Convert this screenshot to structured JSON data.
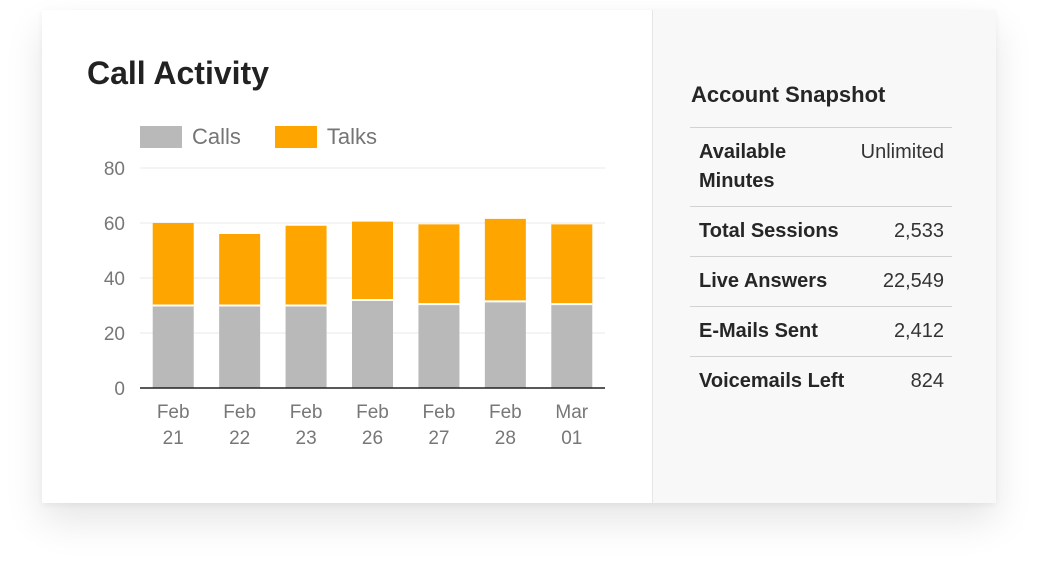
{
  "chart_data": {
    "type": "bar",
    "stacked": true,
    "title": "Call Activity",
    "categories": [
      "Feb 21",
      "Feb 22",
      "Feb 23",
      "Feb 26",
      "Feb 27",
      "Feb 28",
      "Mar 01"
    ],
    "series": [
      {
        "name": "Calls",
        "color": "#b9b9b9",
        "values": [
          30,
          30,
          30,
          32,
          30.5,
          31.5,
          30.5
        ]
      },
      {
        "name": "Talks",
        "color": "#ffa500",
        "values": [
          30,
          26,
          29,
          28.5,
          29,
          30,
          29
        ]
      }
    ],
    "y_ticks": [
      0,
      20,
      40,
      60,
      80
    ],
    "ylim": [
      0,
      80
    ],
    "grid": true,
    "legend": "top-left"
  },
  "snapshot": {
    "title": "Account Snapshot",
    "rows": [
      {
        "label": "Available Minutes",
        "value": "Unlimited"
      },
      {
        "label": "Total Sessions",
        "value": "2,533"
      },
      {
        "label": "Live Answers",
        "value": "22,549"
      },
      {
        "label": "E-Mails Sent",
        "value": "2,412"
      },
      {
        "label": "Voicemails Left",
        "value": "824"
      }
    ]
  }
}
